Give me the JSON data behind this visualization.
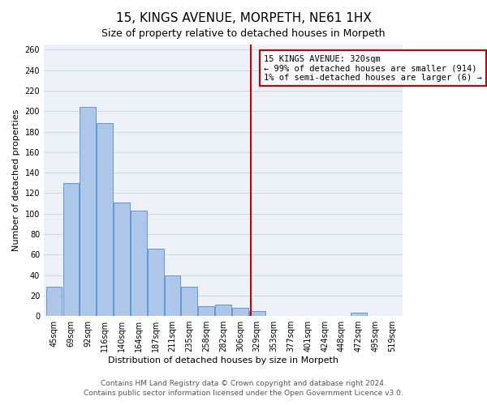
{
  "title": "15, KINGS AVENUE, MORPETH, NE61 1HX",
  "subtitle": "Size of property relative to detached houses in Morpeth",
  "xlabel": "Distribution of detached houses by size in Morpeth",
  "ylabel": "Number of detached properties",
  "bin_labels": [
    "45sqm",
    "69sqm",
    "92sqm",
    "116sqm",
    "140sqm",
    "164sqm",
    "187sqm",
    "211sqm",
    "235sqm",
    "258sqm",
    "282sqm",
    "306sqm",
    "329sqm",
    "353sqm",
    "377sqm",
    "401sqm",
    "424sqm",
    "448sqm",
    "472sqm",
    "495sqm",
    "519sqm"
  ],
  "bar_heights": [
    29,
    130,
    204,
    188,
    111,
    103,
    66,
    40,
    29,
    10,
    11,
    8,
    5,
    0,
    0,
    0,
    0,
    0,
    3,
    0,
    0
  ],
  "bar_color": "#aec6e8",
  "bar_edge_color": "#5b9bd5",
  "grid_color": "#d0d8e8",
  "background_color": "#eef2f8",
  "vline_color": "#cc0000",
  "annotation_title": "15 KINGS AVENUE: 320sqm",
  "annotation_line1": "← 99% of detached houses are smaller (914)",
  "annotation_line2": "1% of semi-detached houses are larger (6) →",
  "annotation_box_color": "#ffffff",
  "annotation_border_color": "#cc0000",
  "ylim": [
    0,
    265
  ],
  "yticks": [
    0,
    20,
    40,
    60,
    80,
    100,
    120,
    140,
    160,
    180,
    200,
    220,
    240,
    260
  ],
  "footer_line1": "Contains HM Land Registry data © Crown copyright and database right 2024.",
  "footer_line2": "Contains public sector information licensed under the Open Government Licence v3.0.",
  "title_fontsize": 11,
  "subtitle_fontsize": 9,
  "annotation_text_fontsize": 7.5,
  "tick_fontsize": 7,
  "footer_fontsize": 6.5
}
